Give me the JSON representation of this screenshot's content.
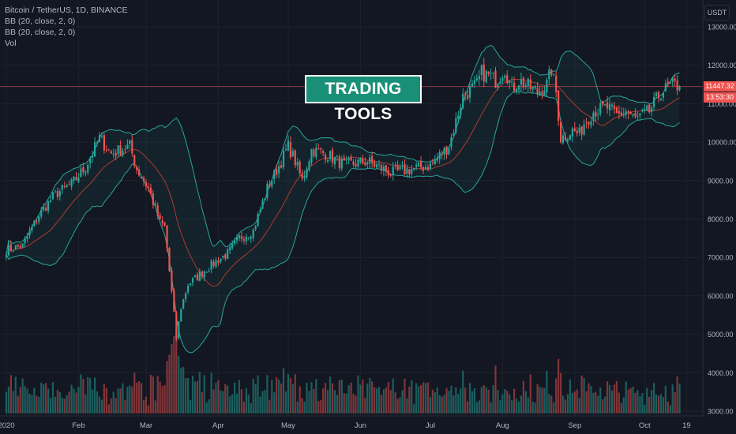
{
  "legend": {
    "symbol": "Bitcoin / TetherUS, 1D, BINANCE",
    "bb1": "BB (20, close, 2, 0)",
    "bb2": "BB (20, close, 2, 0)",
    "vol": "Vol"
  },
  "unit_button": "USDT",
  "banner": "TRADING TOOLS",
  "last_price": "11447.32",
  "countdown": "13:53:30",
  "colors": {
    "up": "#26a69a",
    "down": "#ef5350",
    "band": "#26a69a",
    "basis": "#b03a2e",
    "background": "#131722",
    "grid": "#1e222d"
  },
  "chart_data": {
    "type": "candlestick",
    "y_ticks": [
      "13000.00",
      "12000.00",
      "11000.00",
      "10000.00",
      "9000.00",
      "8000.00",
      "7000.00",
      "6000.00",
      "5000.00",
      "4000.00",
      "3000.00"
    ],
    "y_tick_values": [
      13000,
      12000,
      11000,
      10000,
      9000,
      8000,
      7000,
      6000,
      5000,
      4000,
      3000
    ],
    "x_ticks": [
      "2020",
      "Feb",
      "Mar",
      "Apr",
      "May",
      "Jun",
      "Jul",
      "Aug",
      "Sep",
      "Oct",
      "19"
    ],
    "x_tick_days": [
      0,
      31,
      60,
      91,
      121,
      152,
      182,
      213,
      244,
      274,
      292
    ],
    "ylim": [
      3000,
      13500
    ],
    "series_anchors": {
      "day": [
        0,
        7,
        14,
        21,
        28,
        34,
        40,
        45,
        53,
        56,
        61,
        66,
        68,
        72,
        73,
        75,
        78,
        80,
        84,
        90,
        95,
        100,
        106,
        112,
        118,
        121,
        124,
        127,
        131,
        137,
        145,
        155,
        165,
        175,
        182,
        190,
        196,
        202,
        204,
        208,
        210,
        214,
        217,
        220,
        228,
        232,
        234,
        236,
        238,
        243,
        246,
        248,
        252,
        258,
        262,
        266,
        270,
        276,
        281,
        286,
        289
      ],
      "close": [
        7200,
        7300,
        8100,
        8650,
        8900,
        9350,
        10100,
        9700,
        9900,
        9300,
        8800,
        7900,
        7800,
        5500,
        4900,
        5700,
        6300,
        6400,
        6600,
        6900,
        7100,
        7500,
        7700,
        8800,
        9500,
        9900,
        9500,
        9000,
        9800,
        9700,
        9400,
        9500,
        9200,
        9300,
        9400,
        9900,
        11200,
        11500,
        11800,
        11700,
        11600,
        11900,
        11400,
        11600,
        11300,
        11500,
        11900,
        11300,
        10100,
        10300,
        10200,
        10500,
        10800,
        10900,
        10700,
        10800,
        10600,
        10800,
        11300,
        11500,
        11447
      ]
    },
    "volume_range": [
      0,
      1
    ]
  }
}
